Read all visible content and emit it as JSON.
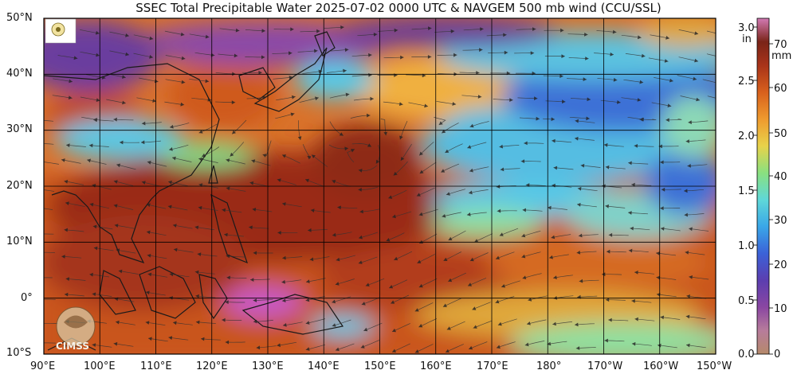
{
  "title": "SSEC Total Precipitable Water  2025-07-02 0000 UTC & NAVGEM 500 mb wind (CCU/SSL)",
  "lat_labels": [
    "50°N",
    "40°N",
    "30°N",
    "20°N",
    "10°N",
    "0°",
    "10°S"
  ],
  "lon_labels": [
    "90°E",
    "100°E",
    "110°E",
    "120°E",
    "130°E",
    "140°E",
    "150°E",
    "160°E",
    "170°E",
    "180°",
    "170°W",
    "160°W",
    "150°W"
  ],
  "colorbar": {
    "in_unit": "in",
    "mm_unit": "mm",
    "in_ticks": [
      "3.0",
      "2.5",
      "2.0",
      "1.5",
      "1.0",
      "0.5",
      "0.0"
    ],
    "mm_ticks": [
      "70",
      "60",
      "50",
      "40",
      "30",
      "20",
      "10",
      "0"
    ]
  },
  "logos": {
    "bottom_left": "CIMSS"
  },
  "colors": {
    "dry_purple": "#7a3b8c",
    "blue": "#3c6fd6",
    "cyan": "#59c9e6",
    "green": "#7de08c",
    "yellow": "#e8c23a",
    "orange": "#e07a24",
    "dark_red": "#9a2a12",
    "pink": "#c85ac8",
    "grid": "#000000"
  }
}
